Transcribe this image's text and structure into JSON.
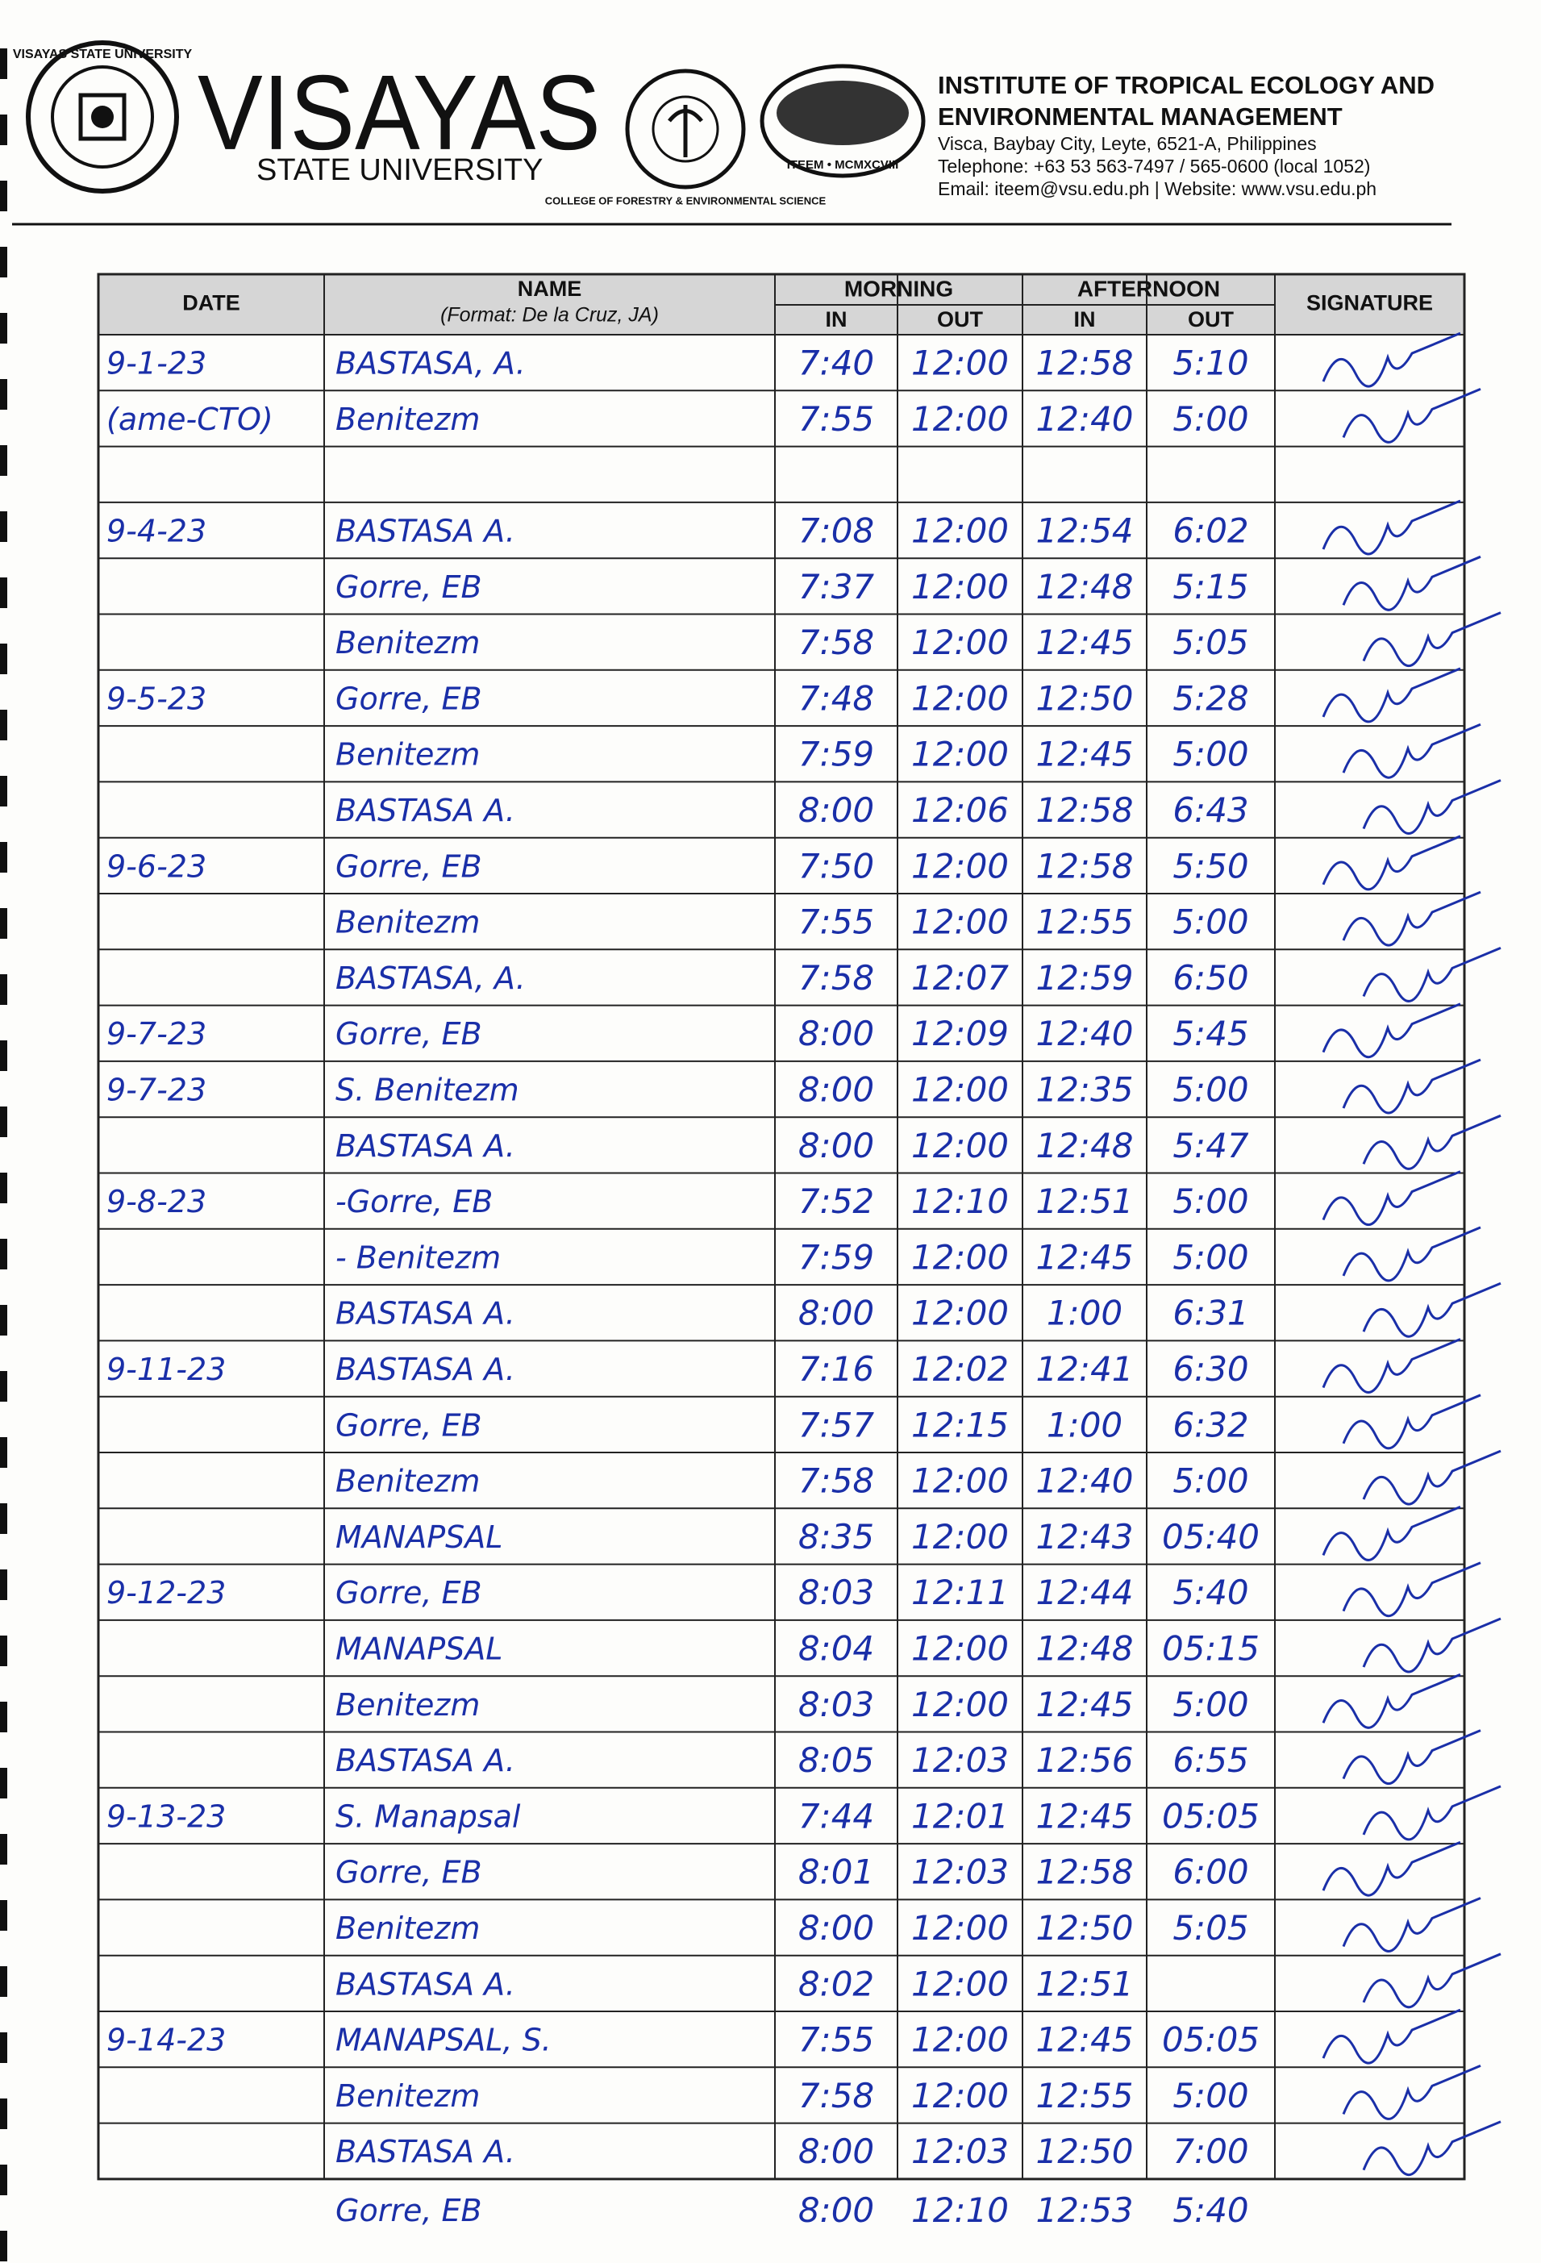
{
  "header": {
    "university": "VISAYAS",
    "university_sub": "STATE UNIVERSITY",
    "seal_text": "VISAYAS STATE UNIVERSITY",
    "college_seal_text": "COLLEGE OF FORESTRY & ENVIRONMENTAL SCIENCE",
    "iteem_seal_text": "ITEEM • MCMXCVIII",
    "institute_line1": "INSTITUTE OF TROPICAL ECOLOGY AND",
    "institute_line2": "ENVIRONMENTAL MANAGEMENT",
    "address": "Visca, Baybay City, Leyte, 6521-A, Philippines",
    "telephone": "Telephone: +63 53 563-7497 / 565-0600 (local 1052)",
    "email": "Email:  iteem@vsu.edu.ph | Website:  www.vsu.edu.ph"
  },
  "table": {
    "headers": {
      "date": "DATE",
      "name": "NAME",
      "name_format": "(Format:  De la Cruz, JA)",
      "morning": "MORNING",
      "afternoon": "AFTERNOON",
      "am_in": "IN",
      "am_out": "OUT",
      "pm_in": "IN",
      "pm_out": "OUT",
      "signature": "SIGNATURE"
    },
    "rows": [
      [
        "9-1-23",
        "BASTASA, A.",
        "7:40",
        "12:00",
        "12:58",
        "5:10"
      ],
      [
        "(ame-CTO)",
        "Benitezm",
        "7:55",
        "12:00",
        "12:40",
        "5:00"
      ],
      [
        null,
        null,
        null,
        null,
        null,
        null
      ],
      [
        "9-4-23",
        "BASTASA A.",
        "7:08",
        "12:00",
        "12:54",
        "6:02"
      ],
      [
        null,
        "Gorre, EB",
        "7:37",
        "12:00",
        "12:48",
        "5:15"
      ],
      [
        null,
        "Benitezm",
        "7:58",
        "12:00",
        "12:45",
        "5:05"
      ],
      [
        "9-5-23",
        "Gorre, EB",
        "7:48",
        "12:00",
        "12:50",
        "5:28"
      ],
      [
        null,
        "Benitezm",
        "7:59",
        "12:00",
        "12:45",
        "5:00"
      ],
      [
        null,
        "BASTASA A.",
        "8:00",
        "12:06",
        "12:58",
        "6:43"
      ],
      [
        "9-6-23",
        "Gorre, EB",
        "7:50",
        "12:00",
        "12:58",
        "5:50"
      ],
      [
        null,
        "Benitezm",
        "7:55",
        "12:00",
        "12:55",
        "5:00"
      ],
      [
        null,
        "BASTASA, A.",
        "7:58",
        "12:07",
        "12:59",
        "6:50"
      ],
      [
        "9-7-23",
        "Gorre, EB",
        "8:00",
        "12:09",
        "12:40",
        "5:45"
      ],
      [
        "9-7-23",
        "S. Benitezm",
        "8:00",
        "12:00",
        "12:35",
        "5:00"
      ],
      [
        null,
        "BASTASA A.",
        "8:00",
        "12:00",
        "12:48",
        "5:47"
      ],
      [
        "9-8-23",
        "-Gorre, EB",
        "7:52",
        "12:10",
        "12:51",
        "5:00"
      ],
      [
        null,
        "- Benitezm",
        "7:59",
        "12:00",
        "12:45",
        "5:00"
      ],
      [
        null,
        "BASTASA A.",
        "8:00",
        "12:00",
        "1:00",
        "6:31"
      ],
      [
        "9-11-23",
        "BASTASA A.",
        "7:16",
        "12:02",
        "12:41",
        "6:30"
      ],
      [
        null,
        "Gorre, EB",
        "7:57",
        "12:15",
        "1:00",
        "6:32"
      ],
      [
        null,
        "Benitezm",
        "7:58",
        "12:00",
        "12:40",
        "5:00"
      ],
      [
        null,
        "MANAPSAL",
        "8:35",
        "12:00",
        "12:43",
        "05:40"
      ],
      [
        "9-12-23",
        "Gorre, EB",
        "8:03",
        "12:11",
        "12:44",
        "5:40"
      ],
      [
        null,
        "MANAPSAL",
        "8:04",
        "12:00",
        "12:48",
        "05:15"
      ],
      [
        null,
        "Benitezm",
        "8:03",
        "12:00",
        "12:45",
        "5:00"
      ],
      [
        null,
        "BASTASA A.",
        "8:05",
        "12:03",
        "12:56",
        "6:55"
      ],
      [
        "9-13-23",
        "S. Manapsal",
        "7:44",
        "12:01",
        "12:45",
        "05:05"
      ],
      [
        null,
        "Gorre, EB",
        "8:01",
        "12:03",
        "12:58",
        "6:00"
      ],
      [
        null,
        "Benitezm",
        "8:00",
        "12:00",
        "12:50",
        "5:05"
      ],
      [
        null,
        "BASTASA A.",
        "8:02",
        "12:00",
        "12:51",
        null
      ],
      [
        "9-14-23",
        "MANAPSAL, S.",
        "7:55",
        "12:00",
        "12:45",
        "05:05"
      ],
      [
        null,
        "Benitezm",
        "7:58",
        "12:00",
        "12:55",
        "5:00"
      ],
      [
        null,
        "BASTASA A.",
        "8:00",
        "12:03",
        "12:50",
        "7:00"
      ]
    ],
    "extra_row": [
      null,
      "Gorre, EB",
      "8:00",
      "12:10",
      "12:53",
      "5:40"
    ]
  }
}
